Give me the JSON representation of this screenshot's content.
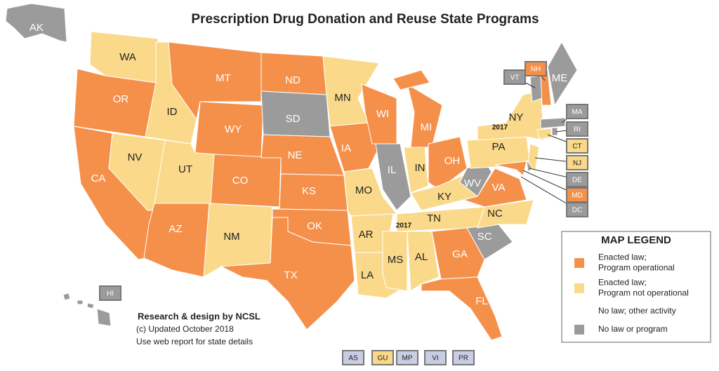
{
  "title": "Prescription Drug Donation and Reuse State Programs",
  "states": [
    {
      "label": "AK",
      "color": "#9b9b9b"
    },
    {
      "label": "WA",
      "color": "#fbd98a"
    },
    {
      "label": "OR",
      "color": "#f5904a"
    },
    {
      "label": "CA",
      "color": "#f5904a"
    },
    {
      "label": "NV",
      "color": "#fbd98a"
    },
    {
      "label": "ID",
      "color": "#fbd98a"
    },
    {
      "label": "MT",
      "color": "#f5904a"
    },
    {
      "label": "WY",
      "color": "#f5904a"
    },
    {
      "label": "UT",
      "color": "#fbd98a"
    },
    {
      "label": "CO",
      "color": "#f5904a"
    },
    {
      "label": "AZ",
      "color": "#f5904a"
    },
    {
      "label": "NM",
      "color": "#fbd98a"
    },
    {
      "label": "ND",
      "color": "#f5904a"
    },
    {
      "label": "SD",
      "color": "#9b9b9b"
    },
    {
      "label": "NE",
      "color": "#f5904a"
    },
    {
      "label": "KS",
      "color": "#f5904a"
    },
    {
      "label": "OK",
      "color": "#f5904a"
    },
    {
      "label": "TX",
      "color": "#f5904a"
    },
    {
      "label": "MN",
      "color": "#fbd98a"
    },
    {
      "label": "IA",
      "color": "#f5904a"
    },
    {
      "label": "MO",
      "color": "#fbd98a"
    },
    {
      "label": "AR",
      "color": "#fbd98a"
    },
    {
      "label": "LA",
      "color": "#fbd98a"
    },
    {
      "label": "WI",
      "color": "#f5904a"
    },
    {
      "label": "IL",
      "color": "#9b9b9b"
    },
    {
      "label": "MI",
      "color": "#f5904a"
    },
    {
      "label": "IN",
      "color": "#fbd98a"
    },
    {
      "label": "OH",
      "color": "#f5904a"
    },
    {
      "label": "KY",
      "color": "#fbd98a"
    },
    {
      "label": "TN",
      "color": "#fbd98a"
    },
    {
      "label": "MS",
      "color": "#fbd98a"
    },
    {
      "label": "AL",
      "color": "#fbd98a"
    },
    {
      "label": "GA",
      "color": "#f5904a"
    },
    {
      "label": "FL",
      "color": "#f5904a"
    },
    {
      "label": "SC",
      "color": "#9b9b9b"
    },
    {
      "label": "NC",
      "color": "#fbd98a"
    },
    {
      "label": "VA",
      "color": "#f5904a"
    },
    {
      "label": "WV",
      "color": "#9b9b9b"
    },
    {
      "label": "PA",
      "color": "#fbd98a"
    },
    {
      "label": "NY",
      "color": "#fbd98a"
    },
    {
      "label": "VT",
      "color": "#9b9b9b"
    },
    {
      "label": "NH",
      "color": "#f5904a"
    },
    {
      "label": "ME",
      "color": "#9b9b9b"
    },
    {
      "label": "MA",
      "color": "#9b9b9b"
    },
    {
      "label": "RI",
      "color": "#9b9b9b"
    },
    {
      "label": "CT",
      "color": "#fbd98a"
    },
    {
      "label": "NJ",
      "color": "#fbd98a"
    },
    {
      "label": "DE",
      "color": "#9b9b9b"
    },
    {
      "label": "MD",
      "color": "#f5904a"
    },
    {
      "label": "DC",
      "color": "#9b9b9b"
    },
    {
      "label": "HI",
      "color": "#9b9b9b"
    },
    {
      "label": "AS",
      "color": "#c9cde3"
    },
    {
      "label": "GU",
      "color": "#fbd98a"
    },
    {
      "label": "MP",
      "color": "#c9cde3"
    },
    {
      "label": "VI",
      "color": "#c9cde3"
    },
    {
      "label": "PR",
      "color": "#c9cde3"
    }
  ],
  "annotations": [
    "2017",
    "2017"
  ],
  "credits": [
    "Research & design by NCSL",
    "(c) Updated October 2018",
    "Use web report for state details"
  ],
  "legend": {
    "title": "MAP LEGEND",
    "items": [
      {
        "lines": [
          "Enacted law;",
          "Program operational"
        ],
        "color": "#f5904a"
      },
      {
        "lines": [
          "Enacted law;",
          "Program not operational"
        ],
        "color": "#fbd98a"
      },
      {
        "lines": [
          "No law; other activity"
        ]
      },
      {
        "lines": [
          "No law or program"
        ],
        "color": "#9b9b9b"
      }
    ]
  }
}
